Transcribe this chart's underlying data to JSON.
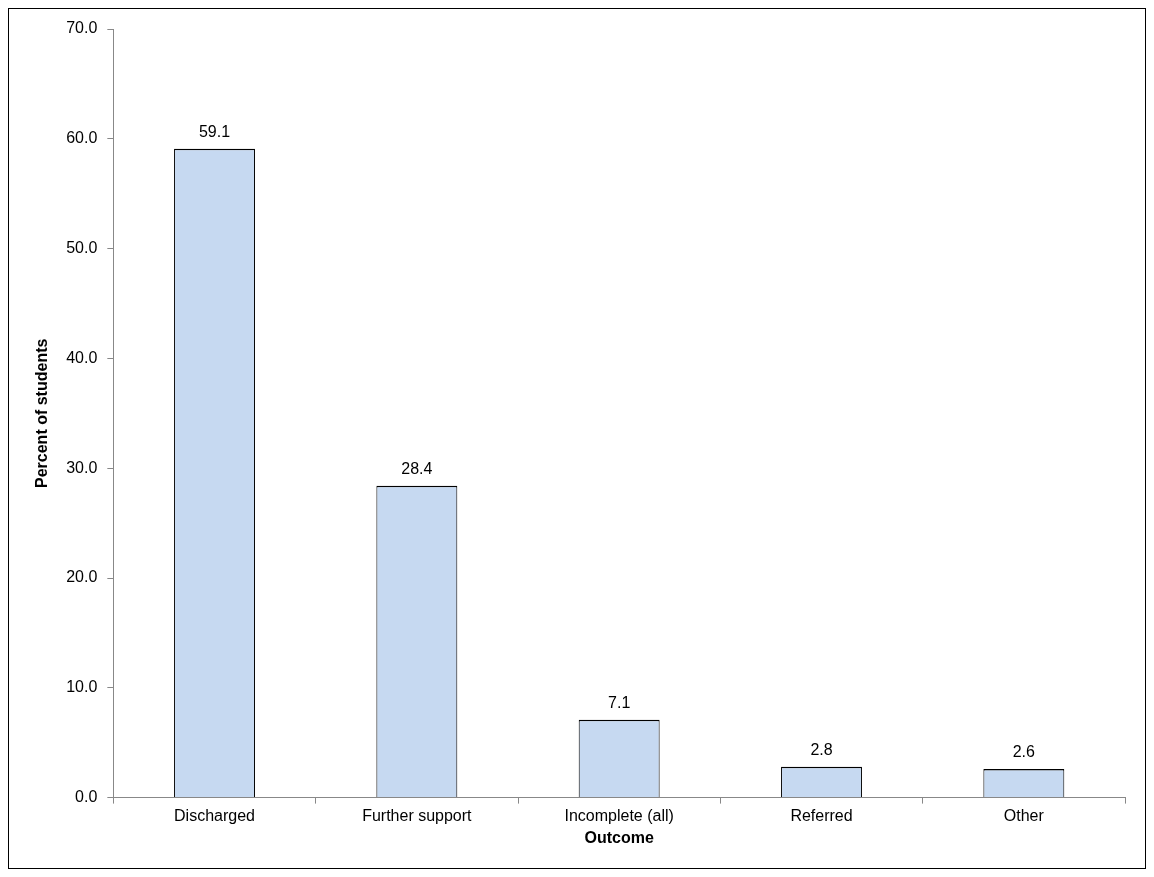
{
  "chart_data": {
    "type": "bar",
    "xlabel": "Outcome",
    "ylabel": "Percent of students",
    "categories": [
      "Discharged",
      "Further support",
      "Incomplete (all)",
      "Referred",
      "Other"
    ],
    "values": [
      59.1,
      28.4,
      7.1,
      2.8,
      2.6
    ],
    "color": "#c6d9f1",
    "ylim": [
      0,
      70
    ],
    "yticks": [
      {
        "value": 0,
        "label": "0.0"
      },
      {
        "value": 10,
        "label": "10.0"
      },
      {
        "value": 20,
        "label": "20.0"
      },
      {
        "value": 30,
        "label": "30.0"
      },
      {
        "value": 40,
        "label": "40.0"
      },
      {
        "value": 50,
        "label": "50.0"
      },
      {
        "value": 60,
        "label": "60.0"
      },
      {
        "value": 70,
        "label": "70.0"
      }
    ],
    "data_labels": true,
    "legend": false
  }
}
